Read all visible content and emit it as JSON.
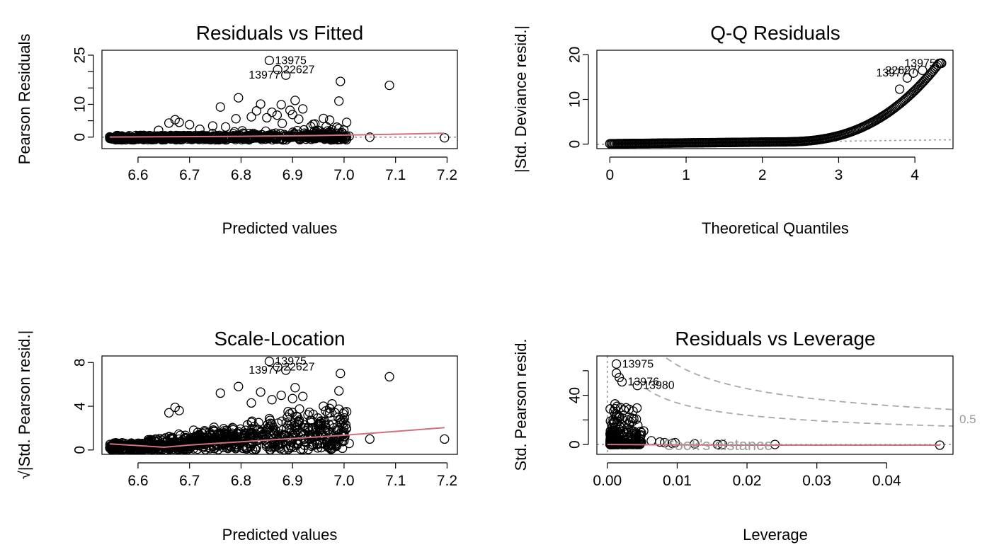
{
  "chart_data": [
    {
      "type": "scatter",
      "title": "Residuals vs Fitted",
      "xlabel": "Predicted values",
      "ylabel": "Pearson Residuals",
      "xlim": [
        6.53,
        7.22
      ],
      "ylim": [
        -3.5,
        26.5
      ],
      "xticks": [
        "6.6",
        "6.7",
        "6.8",
        "6.9",
        "7.0",
        "7.1",
        "7.2"
      ],
      "xtick_values": [
        6.6,
        6.7,
        6.8,
        6.9,
        7.0,
        7.1,
        7.2
      ],
      "yticks": [
        "0",
        "5",
        "10",
        "15",
        "20",
        "25"
      ],
      "ytick_values": [
        0,
        5,
        10,
        15,
        20,
        25
      ],
      "yticks_shown": [
        "0",
        "10",
        "25"
      ],
      "reference_line": {
        "y": 0,
        "style": "dotted",
        "color": "#9a9a9a"
      },
      "smooth_line": [
        [
          6.545,
          0.05
        ],
        [
          6.65,
          0.1
        ],
        [
          6.8,
          0.25
        ],
        [
          6.95,
          0.5
        ],
        [
          7.1,
          0.9
        ],
        [
          7.195,
          1.2
        ]
      ],
      "points": [
        [
          6.855,
          23.4
        ],
        [
          6.871,
          20.6
        ],
        [
          6.887,
          18.9
        ],
        [
          7.088,
          15.8
        ],
        [
          6.993,
          17.0
        ],
        [
          6.795,
          12.0
        ],
        [
          6.905,
          11.2
        ],
        [
          6.99,
          11.0
        ],
        [
          6.838,
          10.1
        ],
        [
          6.878,
          9.9
        ],
        [
          6.76,
          9.2
        ],
        [
          6.92,
          8.6
        ],
        [
          6.895,
          8.2
        ],
        [
          6.83,
          8.0
        ],
        [
          6.96,
          5.7
        ],
        [
          6.972,
          5.2
        ],
        [
          7.005,
          4.5
        ],
        [
          6.9,
          6.9
        ],
        [
          6.86,
          7.6
        ],
        [
          6.82,
          6.2
        ],
        [
          6.87,
          6.7
        ],
        [
          6.912,
          5.5
        ],
        [
          6.79,
          5.6
        ],
        [
          6.85,
          5.9
        ],
        [
          6.672,
          5.3
        ],
        [
          6.68,
          4.5
        ],
        [
          6.66,
          4.3
        ],
        [
          6.7,
          3.8
        ],
        [
          6.745,
          3.4
        ],
        [
          6.77,
          3.1
        ],
        [
          6.88,
          4.2
        ],
        [
          6.94,
          3.9
        ],
        [
          6.99,
          2.6
        ],
        [
          6.72,
          2.4
        ],
        [
          6.64,
          2.1
        ],
        [
          7.05,
          0.0
        ],
        [
          7.195,
          -0.2
        ],
        [
          7.01,
          0.3
        ],
        [
          6.995,
          1.4
        ],
        [
          6.98,
          0.8
        ]
      ],
      "labels": [
        {
          "id": "13975",
          "x": 6.855,
          "y": 23.4,
          "pos": "right"
        },
        {
          "id": "22627",
          "x": 6.871,
          "y": 20.6,
          "pos": "right"
        },
        {
          "id": "13977",
          "x": 6.887,
          "y": 18.9,
          "pos": "left"
        }
      ]
    },
    {
      "type": "scatter",
      "title": "Q-Q Residuals",
      "xlabel": "Theoretical Quantiles",
      "ylabel": "|Std. Deviance resid.|",
      "xlim": [
        -0.17,
        4.5
      ],
      "ylim": [
        -1.0,
        21.0
      ],
      "xticks": [
        "0",
        "1",
        "2",
        "3",
        "4"
      ],
      "xtick_values": [
        0,
        1,
        2,
        3,
        4
      ],
      "yticks": [
        "0",
        "10",
        "20"
      ],
      "ytick_values": [
        0,
        10,
        20
      ],
      "reference_line": {
        "from": [
          -0.17,
          -0.05
        ],
        "to": [
          4.5,
          1.0
        ],
        "style": "dotted",
        "color": "#6e6e6e"
      },
      "labels": [
        {
          "id": "13975",
          "x": 4.35,
          "y": 18.1,
          "pos": "left"
        },
        {
          "id": "22627",
          "x": 4.1,
          "y": 16.5,
          "pos": "left"
        },
        {
          "id": "13977",
          "x": 3.98,
          "y": 15.9,
          "pos": "left"
        }
      ]
    },
    {
      "type": "scatter",
      "title": "Scale-Location",
      "xlabel": "Predicted values",
      "ylabel": "√|Std. Pearson resid.|",
      "xlim": [
        6.53,
        7.22
      ],
      "ylim": [
        -0.4,
        8.6
      ],
      "xticks": [
        "6.6",
        "6.7",
        "6.8",
        "6.9",
        "7.0",
        "7.1",
        "7.2"
      ],
      "xtick_values": [
        6.6,
        6.7,
        6.8,
        6.9,
        7.0,
        7.1,
        7.2
      ],
      "yticks": [
        "0",
        "4",
        "8"
      ],
      "ytick_values": [
        0,
        4,
        8
      ],
      "smooth_line": [
        [
          6.545,
          0.55
        ],
        [
          6.6,
          0.4
        ],
        [
          6.65,
          0.25
        ],
        [
          6.7,
          0.45
        ],
        [
          6.8,
          0.75
        ],
        [
          6.9,
          1.05
        ],
        [
          7.0,
          1.35
        ],
        [
          7.1,
          1.7
        ],
        [
          7.195,
          2.05
        ]
      ],
      "points": [
        [
          6.855,
          8.1
        ],
        [
          6.871,
          7.6
        ],
        [
          6.887,
          7.3
        ],
        [
          6.993,
          7.0
        ],
        [
          7.088,
          6.7
        ],
        [
          6.905,
          5.7
        ],
        [
          6.795,
          5.8
        ],
        [
          6.838,
          5.3
        ],
        [
          6.99,
          5.4
        ],
        [
          6.76,
          5.2
        ],
        [
          6.878,
          5.0
        ],
        [
          6.92,
          4.9
        ],
        [
          6.96,
          4.0
        ],
        [
          6.972,
          3.8
        ],
        [
          7.005,
          3.5
        ],
        [
          6.672,
          3.9
        ],
        [
          6.68,
          3.6
        ],
        [
          6.66,
          3.4
        ],
        [
          6.9,
          4.7
        ],
        [
          6.86,
          4.6
        ],
        [
          6.82,
          4.3
        ],
        [
          6.93,
          3.2
        ],
        [
          7.05,
          1.0
        ],
        [
          7.195,
          1.0
        ],
        [
          7.01,
          0.6
        ],
        [
          6.995,
          1.3
        ],
        [
          6.98,
          0.9
        ],
        [
          6.95,
          2.4
        ],
        [
          6.94,
          2.0
        ],
        [
          6.89,
          3.0
        ]
      ],
      "labels": [
        {
          "id": "13975",
          "x": 6.855,
          "y": 8.1,
          "pos": "right"
        },
        {
          "id": "22627",
          "x": 6.871,
          "y": 7.6,
          "pos": "right"
        },
        {
          "id": "13977",
          "x": 6.887,
          "y": 7.3,
          "pos": "left"
        }
      ]
    },
    {
      "type": "scatter",
      "title": "Residuals vs Leverage",
      "xlabel": "Leverage",
      "ylabel": "Std. Pearson resid.",
      "xlim": [
        -0.0015,
        0.0495
      ],
      "ylim": [
        -8,
        72
      ],
      "xticks": [
        "0.00",
        "0.01",
        "0.02",
        "0.03",
        "0.04"
      ],
      "xtick_values": [
        0.0,
        0.01,
        0.02,
        0.03,
        0.04
      ],
      "yticks": [
        "0",
        "20",
        "40",
        "60"
      ],
      "ytick_values": [
        0,
        20,
        40,
        60
      ],
      "yticks_shown": [
        "0",
        "40"
      ],
      "cook_legend": "Cook's distance",
      "cook_level_label": "0.5",
      "points": [
        [
          0.0013,
          65.5
        ],
        [
          0.0013,
          58.0
        ],
        [
          0.0017,
          54.5
        ],
        [
          0.0021,
          51.0
        ],
        [
          0.0043,
          48.0
        ],
        [
          0.0011,
          33.0
        ],
        [
          0.0014,
          31.0
        ],
        [
          0.0019,
          30.0
        ],
        [
          0.0024,
          28.0
        ],
        [
          0.0009,
          27.0
        ],
        [
          0.0011,
          25.0
        ],
        [
          0.0016,
          23.0
        ],
        [
          0.0021,
          21.5
        ],
        [
          0.0029,
          20.0
        ],
        [
          0.0031,
          16.5
        ],
        [
          0.0052,
          11.0
        ],
        [
          0.0047,
          7.0
        ],
        [
          0.0041,
          5.0
        ],
        [
          0.0063,
          3.0
        ],
        [
          0.0075,
          2.0
        ],
        [
          0.0082,
          1.5
        ],
        [
          0.0093,
          1.0
        ],
        [
          0.0097,
          1.5
        ],
        [
          0.0125,
          0.5
        ],
        [
          0.0158,
          0.0
        ],
        [
          0.0165,
          0.0
        ],
        [
          0.024,
          0.0
        ],
        [
          0.0476,
          -0.5
        ],
        [
          0.0035,
          9.0
        ],
        [
          0.0028,
          13.0
        ]
      ],
      "smooth_line": [
        [
          0.0,
          0.0
        ],
        [
          0.005,
          -0.2
        ],
        [
          0.02,
          -0.5
        ],
        [
          0.0476,
          -0.5
        ]
      ],
      "labels": [
        {
          "id": "13975",
          "x": 0.0013,
          "y": 65.5,
          "pos": "right"
        },
        {
          "id": "13976",
          "x": 0.0021,
          "y": 51.0,
          "pos": "right"
        },
        {
          "id": "13980",
          "x": 0.0043,
          "y": 48.0,
          "pos": "right"
        }
      ]
    }
  ]
}
